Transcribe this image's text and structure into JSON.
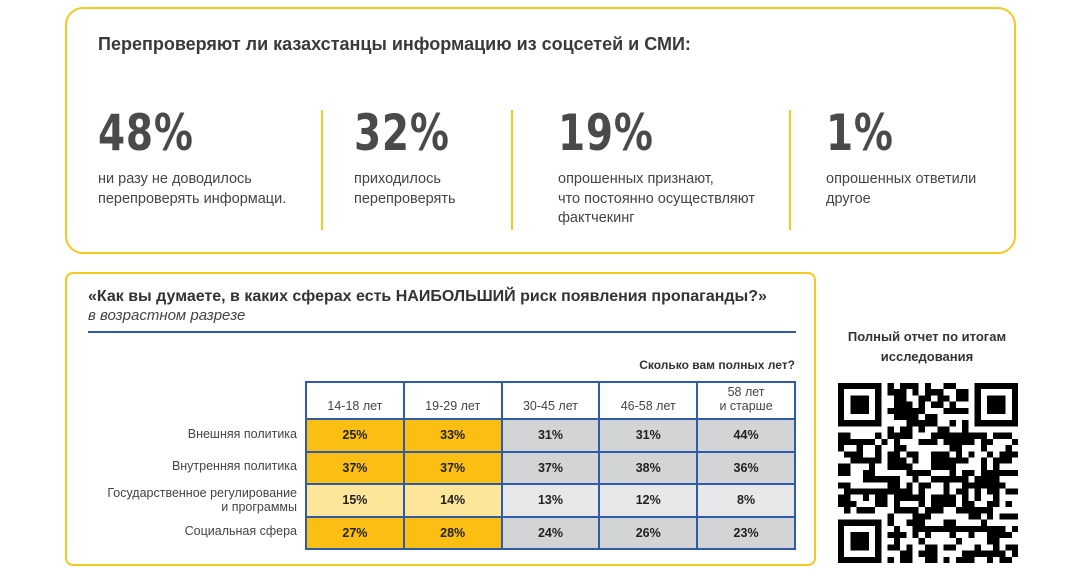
{
  "header": {
    "title": "Перепроверяют ли казахстанцы информацию из соцсетей и СМИ:"
  },
  "stats": [
    {
      "value": "48%",
      "text": "ни разу не доводилось\nперепроверять информаци."
    },
    {
      "value": "32%",
      "text": "приходилось\nперепроверять"
    },
    {
      "value": "19%",
      "text": "опрошенных признают,\nчто постоянно осуществляют\nфактчекинг"
    },
    {
      "value": "1%",
      "text": "опрошенных ответили\nдругое"
    }
  ],
  "survey": {
    "question": "«Как вы думаете, в каких сферах есть НАИБОЛЬШИЙ риск появления пропаганды?»",
    "subtitle": "в возрастном разрезе",
    "age_question": "Сколько вам полных лет?",
    "columns": [
      "14-18 лет",
      "19-29 лет",
      "30-45 лет",
      "46-58 лет",
      "58 лет\nи старше"
    ],
    "rows": [
      {
        "label": "Внешняя политика",
        "values": [
          "25%",
          "33%",
          "31%",
          "31%",
          "44%"
        ]
      },
      {
        "label": "Внутренняя политика",
        "values": [
          "37%",
          "37%",
          "37%",
          "38%",
          "36%"
        ]
      },
      {
        "label": "Государственное регулирование\nи программы",
        "values": [
          "15%",
          "14%",
          "13%",
          "12%",
          "8%"
        ]
      },
      {
        "label": "Социальная сфера",
        "values": [
          "27%",
          "28%",
          "24%",
          "26%",
          "23%"
        ]
      }
    ]
  },
  "qr": {
    "caption": "Полный отчет по итогам\nисследования"
  },
  "colors": {
    "accent": "#f7c81e",
    "blue": "#2f5caa",
    "yellow": "#fbbf14",
    "yellow_light": "#fde59a",
    "gray": "#d3d4d6",
    "gray_light": "#e8e8ea"
  }
}
